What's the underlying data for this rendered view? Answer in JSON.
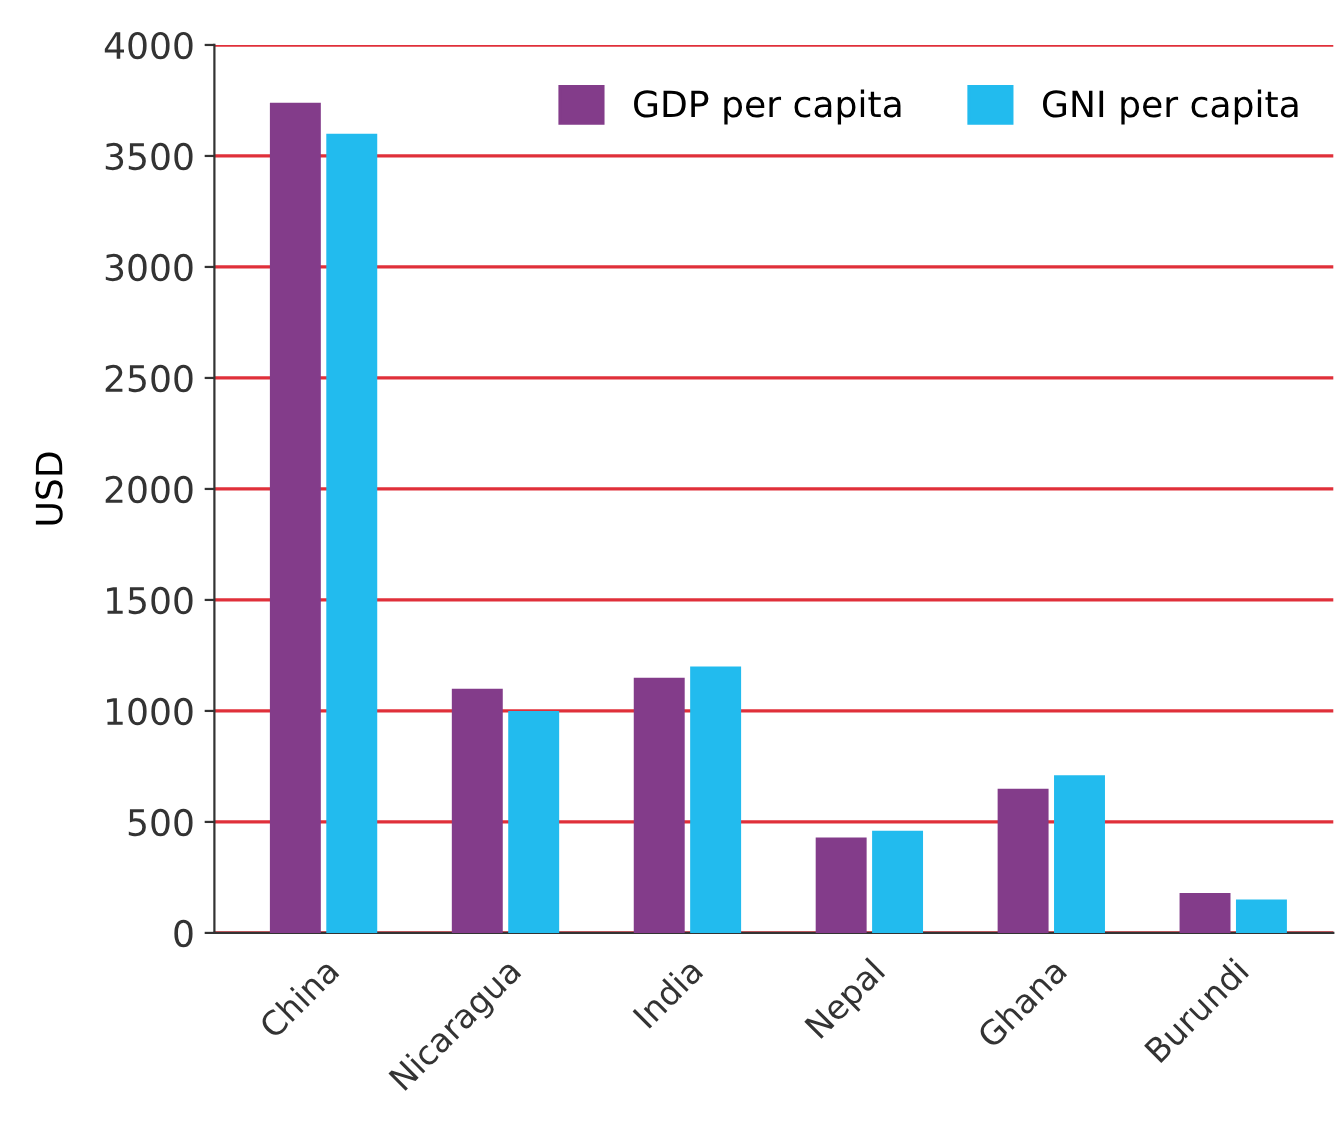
{
  "chart_data": {
    "type": "bar",
    "ylabel": "USD",
    "categories": [
      "China",
      "Nicaragua",
      "India",
      "Nepal",
      "Ghana",
      "Burundi"
    ],
    "series": [
      {
        "name": "GDP per capita",
        "color": "#833c8a",
        "values": [
          3740,
          1100,
          1150,
          430,
          650,
          180
        ]
      },
      {
        "name": "GNI per capita",
        "color": "#22bbee",
        "values": [
          3600,
          1000,
          1200,
          460,
          710,
          150
        ]
      }
    ],
    "ylim": [
      0,
      4000
    ],
    "yticks": [
      0,
      500,
      1000,
      1500,
      2000,
      2500,
      3000,
      3500,
      4000
    ],
    "grid": "y",
    "legend": "top right"
  }
}
